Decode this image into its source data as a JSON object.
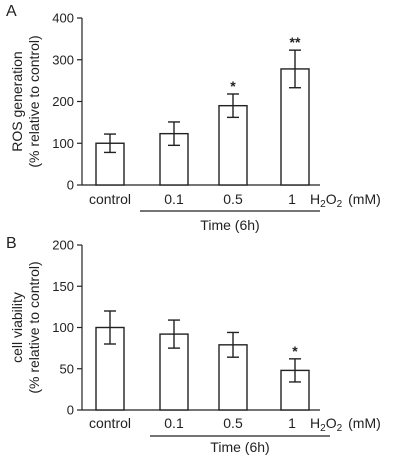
{
  "chart_data": [
    {
      "type": "bar",
      "panel_label": "A",
      "ylabel_lines": [
        "ROS generation",
        "(% relative to control)"
      ],
      "ylim": [
        0,
        400
      ],
      "yticks": [
        0,
        100,
        200,
        300,
        400
      ],
      "categories": [
        "control",
        "0.1",
        "0.5",
        "1"
      ],
      "values": [
        100,
        123,
        190,
        278
      ],
      "errors": [
        22,
        28,
        28,
        45
      ],
      "significance": [
        "",
        "",
        "*",
        "**"
      ],
      "unit_parts": {
        "h": "H",
        "sub1": "2",
        "o": "O",
        "sub2": "2",
        "unit": "(mM)"
      },
      "group_label": "Time (6h)",
      "grid": false
    },
    {
      "type": "bar",
      "panel_label": "B",
      "ylabel_lines": [
        "cell viability",
        "(% relative to control)"
      ],
      "ylim": [
        0,
        200
      ],
      "yticks": [
        0,
        50,
        100,
        150,
        200
      ],
      "categories": [
        "control",
        "0.1",
        "0.5",
        "1"
      ],
      "values": [
        100,
        92,
        79,
        48
      ],
      "errors": [
        20,
        17,
        15,
        14
      ],
      "significance": [
        "",
        "",
        "",
        "*"
      ],
      "unit_parts": {
        "h": "H",
        "sub1": "2",
        "o": "O",
        "sub2": "2",
        "unit": "(mM)"
      },
      "group_label": "Time (6h)",
      "grid": false
    }
  ]
}
